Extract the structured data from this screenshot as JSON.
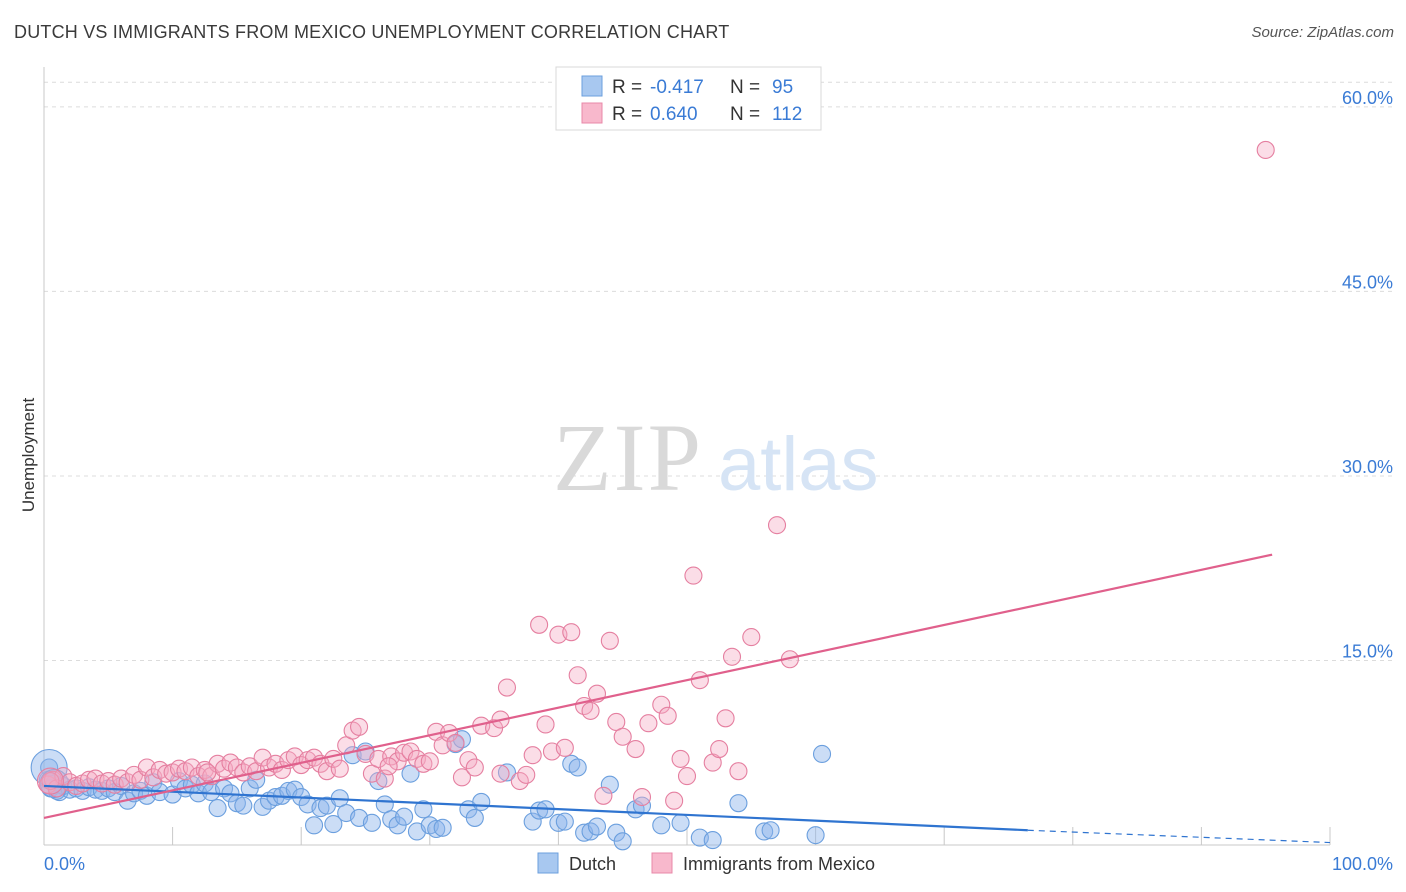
{
  "title": "DUTCH VS IMMIGRANTS FROM MEXICO UNEMPLOYMENT CORRELATION CHART",
  "source": "Source: ZipAtlas.com",
  "watermark": {
    "zip": "ZIP",
    "atlas": "atlas"
  },
  "legend": {
    "rows": [
      {
        "r_label": "R =",
        "r_value": "-0.417",
        "n_label": "N =",
        "n_value": "95",
        "color": "#a8c8f0",
        "stroke": "#6b9fde"
      },
      {
        "r_label": "R =",
        "r_value": "0.640",
        "n_label": "N =",
        "n_value": "112",
        "color": "#f8b8cc",
        "stroke": "#e888a8"
      }
    ]
  },
  "chart_data": {
    "type": "scatter",
    "title": "DUTCH VS IMMIGRANTS FROM MEXICO UNEMPLOYMENT CORRELATION CHART",
    "xlabel": "",
    "ylabel": "Unemployment",
    "xlim": [
      0,
      100
    ],
    "ylim": [
      0,
      63
    ],
    "x_tick_labels": [
      "0.0%",
      "100.0%"
    ],
    "y_ticks": [
      15,
      30,
      45,
      60
    ],
    "y_tick_labels": [
      "15.0%",
      "30.0%",
      "45.0%",
      "60.0%"
    ],
    "grid": true,
    "series": [
      {
        "name": "Dutch",
        "color": "#6b9fde",
        "fill": "rgba(140,180,235,0.45)",
        "trend": {
          "x": [
            0,
            76.5
          ],
          "y": [
            4.8,
            1.2
          ],
          "dashed_to": [
            100,
            0.2
          ]
        },
        "points": [
          [
            0.3,
            5.3
          ],
          [
            0.5,
            4.6
          ],
          [
            0.8,
            5.0
          ],
          [
            1.2,
            4.3
          ],
          [
            1.5,
            4.8
          ],
          [
            2,
            4.5
          ],
          [
            2.5,
            4.6
          ],
          [
            3,
            4.4
          ],
          [
            3.5,
            4.7
          ],
          [
            4,
            4.5
          ],
          [
            4.5,
            4.4
          ],
          [
            5,
            4.6
          ],
          [
            5.5,
            4.3
          ],
          [
            6,
            4.8
          ],
          [
            6.5,
            3.6
          ],
          [
            7,
            4.2
          ],
          [
            7.5,
            4.4
          ],
          [
            8,
            4.0
          ],
          [
            8.5,
            5.1
          ],
          [
            9,
            4.3
          ],
          [
            10,
            4.1
          ],
          [
            10.5,
            5.2
          ],
          [
            11,
            4.6
          ],
          [
            11.5,
            4.9
          ],
          [
            12,
            4.2
          ],
          [
            12.5,
            5.0
          ],
          [
            13,
            4.3
          ],
          [
            13.5,
            3.0
          ],
          [
            14,
            4.6
          ],
          [
            14.5,
            4.2
          ],
          [
            15,
            3.4
          ],
          [
            15.5,
            3.2
          ],
          [
            16,
            4.6
          ],
          [
            16.5,
            5.3
          ],
          [
            17,
            3.1
          ],
          [
            17.5,
            3.6
          ],
          [
            18,
            3.9
          ],
          [
            18.5,
            4.0
          ],
          [
            19,
            4.4
          ],
          [
            19.5,
            4.5
          ],
          [
            20,
            3.9
          ],
          [
            20.5,
            3.3
          ],
          [
            21,
            1.6
          ],
          [
            21.5,
            3.0
          ],
          [
            22,
            3.2
          ],
          [
            22.5,
            1.7
          ],
          [
            23,
            3.8
          ],
          [
            23.5,
            2.6
          ],
          [
            24,
            7.3
          ],
          [
            24.5,
            2.2
          ],
          [
            25,
            7.6
          ],
          [
            25.5,
            1.8
          ],
          [
            26,
            5.2
          ],
          [
            26.5,
            3.3
          ],
          [
            27,
            2.1
          ],
          [
            27.5,
            1.6
          ],
          [
            28,
            2.3
          ],
          [
            28.5,
            5.8
          ],
          [
            29,
            1.1
          ],
          [
            29.5,
            2.9
          ],
          [
            30,
            1.6
          ],
          [
            30.5,
            1.3
          ],
          [
            31,
            1.4
          ],
          [
            32,
            8.2
          ],
          [
            32.5,
            8.6
          ],
          [
            33,
            2.9
          ],
          [
            33.5,
            2.2
          ],
          [
            34,
            3.5
          ],
          [
            36,
            5.9
          ],
          [
            38,
            1.9
          ],
          [
            38.5,
            2.8
          ],
          [
            39,
            2.9
          ],
          [
            40,
            1.8
          ],
          [
            40.5,
            1.9
          ],
          [
            41,
            6.6
          ],
          [
            41.5,
            6.3
          ],
          [
            42,
            1.0
          ],
          [
            42.5,
            1.1
          ],
          [
            43,
            1.5
          ],
          [
            44,
            4.9
          ],
          [
            44.5,
            1.0
          ],
          [
            45,
            0.3
          ],
          [
            46,
            2.9
          ],
          [
            46.5,
            3.2
          ],
          [
            48,
            1.6
          ],
          [
            49.5,
            1.8
          ],
          [
            51,
            0.6
          ],
          [
            52,
            0.4
          ],
          [
            54,
            3.4
          ],
          [
            56,
            1.1
          ],
          [
            56.5,
            1.2
          ],
          [
            60,
            0.8
          ],
          [
            60.5,
            7.4
          ],
          [
            0.4,
            6.3
          ],
          [
            1,
            4.4
          ]
        ],
        "big": [
          [
            0.4,
            6.3,
            18
          ],
          [
            0.8,
            5.0,
            14
          ]
        ]
      },
      {
        "name": "Immigrants from Mexico",
        "color": "#e57fa0",
        "fill": "rgba(245,170,195,0.40)",
        "trend": {
          "x": [
            0,
            95.5
          ],
          "y": [
            2.2,
            23.6
          ]
        },
        "points": [
          [
            0.3,
            4.9
          ],
          [
            0.7,
            5.3
          ],
          [
            1,
            4.6
          ],
          [
            1.5,
            5.6
          ],
          [
            2,
            5.1
          ],
          [
            2.5,
            4.8
          ],
          [
            3,
            5.0
          ],
          [
            3.5,
            5.3
          ],
          [
            4,
            5.4
          ],
          [
            4.5,
            5.0
          ],
          [
            5,
            5.2
          ],
          [
            5.5,
            4.9
          ],
          [
            6,
            5.4
          ],
          [
            6.5,
            5.1
          ],
          [
            7,
            5.7
          ],
          [
            7.5,
            5.3
          ],
          [
            8,
            6.3
          ],
          [
            8.5,
            5.5
          ],
          [
            9,
            6.1
          ],
          [
            9.5,
            5.8
          ],
          [
            10,
            5.9
          ],
          [
            10.5,
            6.2
          ],
          [
            11,
            6.0
          ],
          [
            11.5,
            6.3
          ],
          [
            12,
            5.6
          ],
          [
            12.5,
            6.1
          ],
          [
            13,
            5.6
          ],
          [
            13.5,
            6.6
          ],
          [
            14,
            6.2
          ],
          [
            14.5,
            6.7
          ],
          [
            15,
            6.3
          ],
          [
            15.5,
            5.9
          ],
          [
            16,
            6.4
          ],
          [
            16.5,
            6.0
          ],
          [
            17,
            7.1
          ],
          [
            17.5,
            6.3
          ],
          [
            18,
            6.6
          ],
          [
            18.5,
            6.1
          ],
          [
            19,
            6.9
          ],
          [
            19.5,
            7.2
          ],
          [
            20,
            6.5
          ],
          [
            20.5,
            6.9
          ],
          [
            21,
            7.1
          ],
          [
            21.5,
            6.6
          ],
          [
            22,
            6.0
          ],
          [
            22.5,
            7.0
          ],
          [
            23,
            6.2
          ],
          [
            23.5,
            8.1
          ],
          [
            24,
            9.3
          ],
          [
            24.5,
            9.6
          ],
          [
            25,
            7.4
          ],
          [
            25.5,
            5.8
          ],
          [
            26,
            7.0
          ],
          [
            26.5,
            5.4
          ],
          [
            27,
            7.2
          ],
          [
            27.5,
            6.8
          ],
          [
            28,
            7.5
          ],
          [
            28.5,
            7.6
          ],
          [
            29,
            7.0
          ],
          [
            29.5,
            6.6
          ],
          [
            30,
            6.8
          ],
          [
            30.5,
            9.2
          ],
          [
            31,
            8.1
          ],
          [
            31.5,
            9.1
          ],
          [
            32,
            8.3
          ],
          [
            32.5,
            5.5
          ],
          [
            33,
            6.9
          ],
          [
            33.5,
            6.3
          ],
          [
            34,
            9.7
          ],
          [
            35,
            9.5
          ],
          [
            35.5,
            5.8
          ],
          [
            36,
            12.8
          ],
          [
            37,
            5.2
          ],
          [
            37.5,
            5.7
          ],
          [
            38,
            7.3
          ],
          [
            38.5,
            17.9
          ],
          [
            39,
            9.8
          ],
          [
            39.5,
            7.6
          ],
          [
            40,
            17.1
          ],
          [
            40.5,
            7.9
          ],
          [
            41,
            17.3
          ],
          [
            41.5,
            13.8
          ],
          [
            42,
            11.3
          ],
          [
            42.5,
            10.9
          ],
          [
            43,
            12.3
          ],
          [
            43.5,
            4.0
          ],
          [
            44,
            16.6
          ],
          [
            44.5,
            10.0
          ],
          [
            45,
            8.8
          ],
          [
            46,
            7.8
          ],
          [
            46.5,
            3.9
          ],
          [
            47,
            9.9
          ],
          [
            48,
            11.4
          ],
          [
            48.5,
            10.5
          ],
          [
            49,
            3.6
          ],
          [
            49.5,
            7.0
          ],
          [
            50,
            5.6
          ],
          [
            50.5,
            21.9
          ],
          [
            51,
            13.4
          ],
          [
            52,
            6.7
          ],
          [
            52.5,
            7.8
          ],
          [
            53,
            10.3
          ],
          [
            53.5,
            15.3
          ],
          [
            54,
            6.0
          ],
          [
            55,
            16.9
          ],
          [
            57,
            26.0
          ],
          [
            58,
            15.1
          ],
          [
            95,
            56.5
          ],
          [
            35.5,
            10.2
          ],
          [
            0.5,
            5.2
          ],
          [
            12.7,
            5.9
          ],
          [
            26.8,
            6.4
          ]
        ],
        "big": [
          [
            0.5,
            5.2,
            13
          ]
        ]
      }
    ]
  },
  "bottom_legend": [
    {
      "label": "Dutch",
      "color": "#a8c8f0",
      "stroke": "#6b9fde"
    },
    {
      "label": "Immigrants from Mexico",
      "color": "#f8b8cc",
      "stroke": "#e888a8"
    }
  ]
}
